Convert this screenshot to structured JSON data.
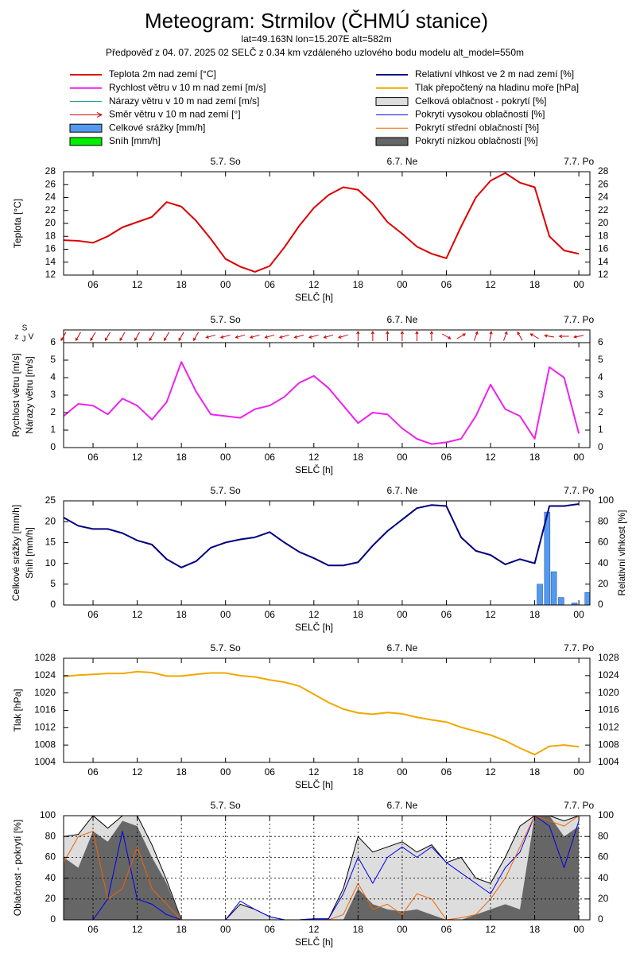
{
  "header": {
    "title": "Meteogram: Strmilov (ČHMÚ stanice)",
    "subtitle": "lat=49.163N lon=15.207E alt=582m",
    "note": "Předpověď z 04. 07. 2025 02 SELČ z 0.34 km vzdáleného uzlového bodu modelu alt_model=550m",
    "legend": [
      {
        "label": "Teplota 2m nad zemí [°C]",
        "color": "#dd0000",
        "symbol": "line"
      },
      {
        "label": "Rychlost větru v 10 m nad zemí [m/s]",
        "color": "#ee22ee",
        "symbol": "line"
      },
      {
        "label": "Nárazy větru v 10 m nad zemí [m/s]",
        "color": "#008b8b",
        "symbol": "line"
      },
      {
        "label": "Směr větru v 10 m nad zemí [°]",
        "color": "#cc0000",
        "symbol": "arrow"
      },
      {
        "label": "Celkové srážky [mm/h]",
        "color": "#5599ee",
        "symbol": "box"
      },
      {
        "label": "Sníh [mm/h]",
        "color": "#00ee00",
        "symbol": "box"
      },
      {
        "label": "Relativní vlhkost ve 2 m nad zemí [%]",
        "color": "#000080",
        "symbol": "line"
      },
      {
        "label": "Tlak přepočtený na hladinu moře [hPa]",
        "color": "#f0a800",
        "symbol": "line"
      },
      {
        "label": "Celková oblačnost - pokrytí [%]",
        "color": "#dddddd",
        "symbol": "box"
      },
      {
        "label": "Pokrytí vysokou oblačností [%]",
        "color": "#0000ee",
        "symbol": "line"
      },
      {
        "label": "Pokrytí střední oblačností [%]",
        "color": "#ee6600",
        "symbol": "line"
      },
      {
        "label": "Pokrytí nízkou oblačností [%]",
        "color": "#666666",
        "symbol": "box"
      }
    ]
  },
  "chart_data": [
    {
      "type": "line",
      "xlim": [
        2,
        73.5
      ],
      "xlabel": "SELČ [h]",
      "xticks": [
        {
          "value": 6,
          "label": "06"
        },
        12,
        18,
        {
          "value": 24,
          "label": "00"
        },
        {
          "value": 30,
          "label": "06"
        },
        {
          "value": 36,
          "label": "12"
        },
        {
          "value": 42,
          "label": "18"
        },
        {
          "value": 48,
          "label": "00"
        },
        {
          "value": 54,
          "label": "06"
        },
        {
          "value": 60,
          "label": "12"
        },
        {
          "value": 66,
          "label": "18"
        },
        {
          "value": 72,
          "label": "00"
        }
      ],
      "days": [
        {
          "value": 24,
          "label": "5.7. So"
        },
        {
          "value": 48,
          "label": "6.7. Ne"
        },
        {
          "value": 72,
          "label": "7.7. Po"
        }
      ],
      "ylim": [
        12,
        28
      ],
      "yticks": [
        12,
        14,
        16,
        18,
        20,
        22,
        24,
        26,
        28
      ],
      "yticks_right": true,
      "ylabel": [
        "Teplota [°C]"
      ],
      "x": [
        2,
        4,
        6,
        8,
        10,
        12,
        14,
        16,
        18,
        20,
        22,
        24,
        26,
        28,
        30,
        32,
        34,
        36,
        38,
        40,
        42,
        44,
        46,
        48,
        50,
        52,
        54,
        56,
        58,
        60,
        62,
        64,
        66,
        68,
        70,
        72
      ],
      "series": [
        {
          "kind": "line",
          "color": "#dd0000",
          "width": 2,
          "values": [
            17.4,
            17.3,
            17.0,
            18.0,
            19.4,
            20.2,
            21.0,
            23.3,
            22.6,
            20.4,
            17.6,
            14.5,
            13.3,
            12.5,
            13.4,
            16.3,
            19.6,
            22.4,
            24.4,
            25.6,
            25.2,
            23.1,
            20.2,
            18.4,
            16.4,
            15.3,
            14.6,
            19.5,
            24.0,
            26.6,
            27.8,
            26.3,
            25.6,
            18.0,
            15.8,
            15.3
          ]
        }
      ]
    },
    {
      "type": "line",
      "xlim": [
        2,
        73.5
      ],
      "xlabel": "SELČ [h]",
      "xticks": [
        {
          "value": 6,
          "label": "06"
        },
        12,
        18,
        {
          "value": 24,
          "label": "00"
        },
        {
          "value": 30,
          "label": "06"
        },
        {
          "value": 36,
          "label": "12"
        },
        {
          "value": 42,
          "label": "18"
        },
        {
          "value": 48,
          "label": "00"
        },
        {
          "value": 54,
          "label": "06"
        },
        {
          "value": 60,
          "label": "12"
        },
        {
          "value": 66,
          "label": "18"
        },
        {
          "value": 72,
          "label": "00"
        }
      ],
      "days": [
        {
          "value": 24,
          "label": "5.7. So"
        },
        {
          "value": 48,
          "label": "6.7. Ne"
        },
        {
          "value": 72,
          "label": "7.7. Po"
        }
      ],
      "ylim": [
        0,
        6
      ],
      "yticks": [
        0,
        1,
        2,
        3,
        4,
        5,
        6
      ],
      "yticks_right": true,
      "ylabel": [
        "Rychlost větru [m/s]",
        "Nárazy větru [m/s]"
      ],
      "compass": [
        "z",
        "S",
        "J",
        "V"
      ],
      "x": [
        2,
        4,
        6,
        8,
        10,
        12,
        14,
        16,
        18,
        20,
        22,
        24,
        26,
        28,
        30,
        32,
        34,
        36,
        38,
        40,
        42,
        44,
        46,
        48,
        50,
        52,
        54,
        56,
        58,
        60,
        62,
        64,
        66,
        68,
        70,
        72
      ],
      "direction": {
        "color": "#cc0000",
        "values": [
          30,
          30,
          30,
          30,
          30,
          30,
          30,
          30,
          30,
          30,
          75,
          75,
          75,
          75,
          75,
          75,
          75,
          75,
          75,
          75,
          180,
          180,
          180,
          180,
          180,
          180,
          300,
          240,
          200,
          190,
          200,
          150,
          120,
          100,
          90,
          80
        ]
      },
      "series": [
        {
          "kind": "line",
          "color": "#ee22ee",
          "width": 2,
          "values": [
            1.8,
            2.5,
            2.4,
            1.9,
            2.8,
            2.4,
            1.6,
            2.6,
            4.9,
            3.2,
            1.9,
            1.8,
            1.7,
            2.2,
            2.4,
            2.9,
            3.7,
            4.1,
            3.4,
            2.4,
            1.4,
            2.0,
            1.9,
            1.1,
            0.5,
            0.2,
            0.3,
            0.5,
            1.8,
            3.6,
            2.2,
            1.8,
            0.5,
            4.6,
            4.0,
            0.8
          ]
        }
      ]
    },
    {
      "type": "line",
      "xlim": [
        2,
        73.5
      ],
      "xlabel": "SELČ [h]",
      "xticks": [
        {
          "value": 6,
          "label": "06"
        },
        12,
        18,
        {
          "value": 24,
          "label": "00"
        },
        {
          "value": 30,
          "label": "06"
        },
        {
          "value": 36,
          "label": "12"
        },
        {
          "value": 42,
          "label": "18"
        },
        {
          "value": 48,
          "label": "00"
        },
        {
          "value": 54,
          "label": "06"
        },
        {
          "value": 60,
          "label": "12"
        },
        {
          "value": 66,
          "label": "18"
        },
        {
          "value": 72,
          "label": "00"
        }
      ],
      "days": [
        {
          "value": 24,
          "label": "5.7. So"
        },
        {
          "value": 48,
          "label": "6.7. Ne"
        },
        {
          "value": 72,
          "label": "7.7. Po"
        }
      ],
      "ylim": [
        0,
        25
      ],
      "yticks": [
        0,
        5,
        10,
        15,
        20,
        25
      ],
      "ylabel": [
        "Celkové srážky [mm/h]",
        "Sníh [mm/h]"
      ],
      "y2lim": [
        0,
        100
      ],
      "y2ticks": [
        0,
        20,
        40,
        60,
        80,
        100
      ],
      "y2label": "Relativní vlhkost [%]",
      "x": [
        2,
        4,
        6,
        8,
        10,
        12,
        14,
        16,
        18,
        20,
        22,
        24,
        26,
        28,
        30,
        32,
        34,
        36,
        38,
        40,
        42,
        44,
        46,
        48,
        50,
        52,
        54,
        56,
        58,
        60,
        62,
        64,
        66,
        68,
        70,
        72
      ],
      "series": [
        {
          "kind": "bar",
          "color": "#5599ee",
          "x": [
            66.7,
            67.7,
            68.6,
            69.6,
            71.4,
            73.2
          ],
          "values": [
            5.0,
            22.3,
            8.0,
            1.8,
            0.5,
            3.0
          ]
        },
        {
          "kind": "line",
          "color": "#000080",
          "width": 2,
          "axis": "y2",
          "values": [
            84,
            76,
            73,
            73,
            69,
            62,
            58,
            44,
            36,
            42,
            55,
            60,
            63,
            65,
            70,
            60,
            51,
            45,
            38,
            38,
            41,
            57,
            71,
            82,
            93,
            96,
            95,
            65,
            52,
            48,
            39,
            44,
            40,
            95,
            95,
            97
          ]
        }
      ]
    },
    {
      "type": "line",
      "xlim": [
        2,
        73.5
      ],
      "xlabel": "SELČ [h]",
      "xticks": [
        {
          "value": 6,
          "label": "06"
        },
        12,
        18,
        {
          "value": 24,
          "label": "00"
        },
        {
          "value": 30,
          "label": "06"
        },
        {
          "value": 36,
          "label": "12"
        },
        {
          "value": 42,
          "label": "18"
        },
        {
          "value": 48,
          "label": "00"
        },
        {
          "value": 54,
          "label": "06"
        },
        {
          "value": 60,
          "label": "12"
        },
        {
          "value": 66,
          "label": "18"
        },
        {
          "value": 72,
          "label": "00"
        }
      ],
      "days": [
        {
          "value": 24,
          "label": "5.7. So"
        },
        {
          "value": 48,
          "label": "6.7. Ne"
        },
        {
          "value": 72,
          "label": "7.7. Po"
        }
      ],
      "ylim": [
        1004,
        1028
      ],
      "yticks": [
        1004,
        1008,
        1012,
        1016,
        1020,
        1024,
        1028
      ],
      "yticks_right": true,
      "ylabel": [
        "Tlak [hPa]"
      ],
      "x": [
        2,
        4,
        6,
        8,
        10,
        12,
        14,
        16,
        18,
        20,
        22,
        24,
        26,
        28,
        30,
        32,
        34,
        36,
        38,
        40,
        42,
        44,
        46,
        48,
        50,
        52,
        54,
        56,
        58,
        60,
        62,
        64,
        66,
        68,
        70,
        72
      ],
      "series": [
        {
          "kind": "line",
          "color": "#f0a800",
          "width": 2,
          "values": [
            1023.8,
            1024.1,
            1024.3,
            1024.5,
            1024.5,
            1024.9,
            1024.7,
            1023.9,
            1023.9,
            1024.3,
            1024.6,
            1024.6,
            1024.0,
            1023.7,
            1023.0,
            1022.5,
            1021.6,
            1019.7,
            1017.8,
            1016.3,
            1015.4,
            1015.1,
            1015.5,
            1015.2,
            1014.4,
            1013.8,
            1013.3,
            1012.1,
            1011.2,
            1010.3,
            1009.0,
            1007.3,
            1005.8,
            1007.7,
            1008.0,
            1007.6
          ]
        }
      ]
    },
    {
      "type": "area",
      "xlim": [
        2,
        73.5
      ],
      "xlabel": "SELČ [h]",
      "grid": true,
      "xticks": [
        {
          "value": 6,
          "label": "06"
        },
        12,
        18,
        {
          "value": 24,
          "label": "00"
        },
        {
          "value": 30,
          "label": "06"
        },
        {
          "value": 36,
          "label": "12"
        },
        {
          "value": 42,
          "label": "18"
        },
        {
          "value": 48,
          "label": "00"
        },
        {
          "value": 54,
          "label": "06"
        },
        {
          "value": 60,
          "label": "12"
        },
        {
          "value": 66,
          "label": "18"
        },
        {
          "value": 72,
          "label": "00"
        }
      ],
      "days": [
        {
          "value": 24,
          "label": "5.7. So"
        },
        {
          "value": 48,
          "label": "6.7. Ne"
        },
        {
          "value": 72,
          "label": "7.7. Po"
        }
      ],
      "ylim": [
        0,
        100
      ],
      "yticks": [
        0,
        20,
        40,
        60,
        80,
        100
      ],
      "yticks_right": true,
      "ylabel": [
        "Oblačnost - pokrytí [%]"
      ],
      "x": [
        2,
        4,
        6,
        8,
        10,
        12,
        14,
        16,
        18,
        20,
        22,
        24,
        26,
        28,
        30,
        32,
        34,
        36,
        38,
        40,
        42,
        44,
        46,
        48,
        50,
        52,
        54,
        56,
        58,
        60,
        62,
        64,
        66,
        68,
        70,
        72
      ],
      "series": [
        {
          "kind": "area",
          "color": "#dddddd",
          "edge": "#000000",
          "values": [
            80,
            82,
            100,
            88,
            100,
            100,
            72,
            38,
            0,
            0,
            0,
            0,
            15,
            10,
            3,
            0,
            0,
            1,
            1,
            30,
            80,
            65,
            70,
            75,
            65,
            72,
            55,
            60,
            40,
            35,
            60,
            90,
            100,
            100,
            95,
            100
          ]
        },
        {
          "kind": "area",
          "color": "#666666",
          "values": [
            60,
            50,
            85,
            75,
            95,
            90,
            60,
            35,
            0,
            0,
            0,
            0,
            0,
            0,
            0,
            0,
            0,
            0,
            0,
            0,
            30,
            15,
            10,
            8,
            10,
            5,
            0,
            0,
            5,
            10,
            15,
            10,
            100,
            100,
            80,
            90
          ]
        },
        {
          "kind": "line",
          "color": "#0000ee",
          "width": 1,
          "values": [
            0,
            0,
            0,
            20,
            85,
            20,
            15,
            5,
            0,
            0,
            0,
            0,
            18,
            10,
            3,
            0,
            0,
            1,
            1,
            25,
            60,
            35,
            60,
            70,
            60,
            70,
            55,
            45,
            35,
            25,
            50,
            65,
            100,
            90,
            50,
            95
          ]
        },
        {
          "kind": "line",
          "color": "#ee6600",
          "width": 1,
          "values": [
            55,
            80,
            85,
            20,
            30,
            70,
            30,
            15,
            0,
            0,
            0,
            0,
            0,
            0,
            0,
            0,
            0,
            0,
            0,
            5,
            35,
            10,
            15,
            5,
            25,
            20,
            0,
            2,
            5,
            20,
            40,
            70,
            100,
            95,
            90,
            100
          ]
        }
      ]
    }
  ]
}
